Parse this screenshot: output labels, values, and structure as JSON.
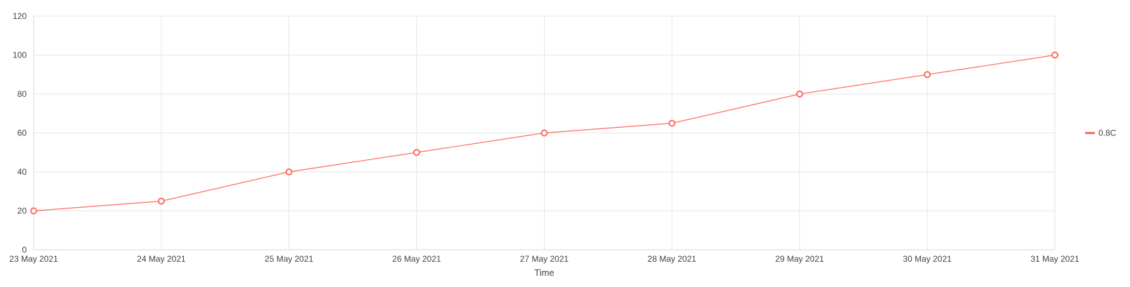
{
  "chart_data": {
    "type": "line",
    "title": "",
    "xlabel": "Time",
    "ylabel": "",
    "x": [
      "23 May 2021",
      "24 May 2021",
      "25 May 2021",
      "26 May 2021",
      "27 May 2021",
      "28 May 2021",
      "29 May 2021",
      "30 May 2021",
      "31 May 2021"
    ],
    "y_ticks": [
      0,
      20,
      40,
      60,
      80,
      100,
      120
    ],
    "ylim": [
      0,
      120
    ],
    "grid": true,
    "legend": "right",
    "series": [
      {
        "name": "0.8C",
        "color": "#ff6b5e",
        "values": [
          20,
          25,
          40,
          50,
          60,
          65,
          80,
          90,
          100
        ]
      }
    ]
  }
}
